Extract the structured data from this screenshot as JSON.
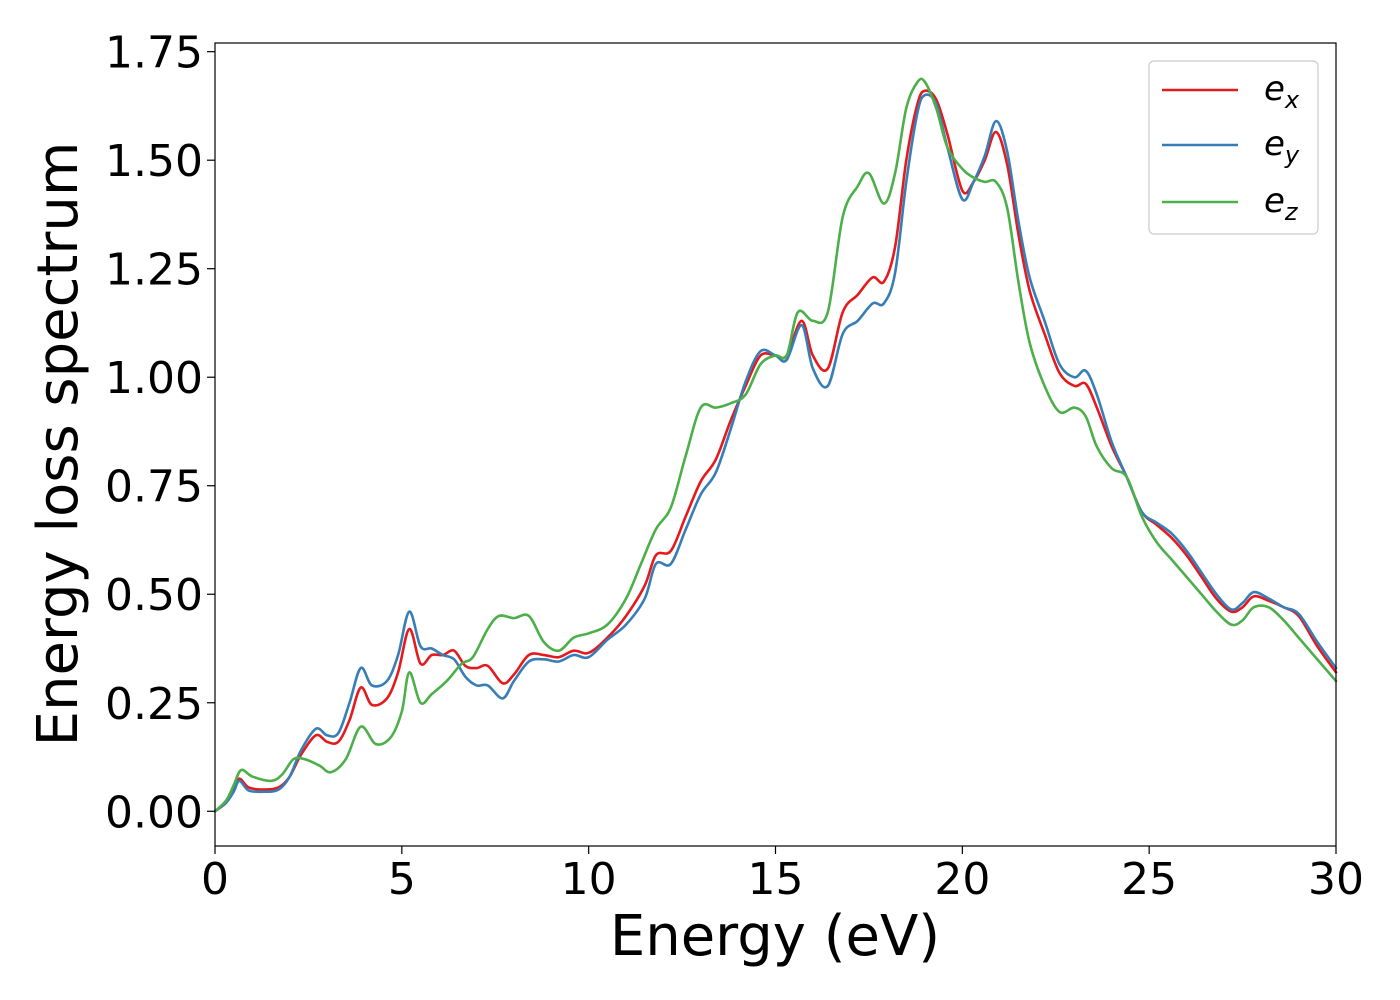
{
  "chart_data": {
    "type": "line",
    "xlabel": "Energy (eV)",
    "ylabel": "Energy loss spectrum",
    "xlim": [
      0,
      30
    ],
    "ylim": [
      -0.08,
      1.77
    ],
    "xticks": [
      0,
      5,
      10,
      15,
      20,
      25,
      30
    ],
    "xtick_labels": [
      "0",
      "5",
      "10",
      "15",
      "20",
      "25",
      "30"
    ],
    "yticks": [
      0,
      0.25,
      0.5,
      0.75,
      1.0,
      1.25,
      1.5,
      1.75
    ],
    "ytick_labels": [
      "0.00",
      "0.25",
      "0.50",
      "0.75",
      "1.00",
      "1.25",
      "1.50",
      "1.75"
    ],
    "grid": false,
    "legend_position": "top-right",
    "series": [
      {
        "name": "e_x",
        "label_main": "e",
        "label_sub": "x",
        "color": "#e41a1c",
        "points": [
          [
            0,
            0.0
          ],
          [
            0.3,
            0.02
          ],
          [
            0.5,
            0.05
          ],
          [
            0.65,
            0.075
          ],
          [
            0.9,
            0.055
          ],
          [
            1.3,
            0.05
          ],
          [
            1.7,
            0.055
          ],
          [
            2.0,
            0.08
          ],
          [
            2.3,
            0.13
          ],
          [
            2.7,
            0.175
          ],
          [
            3.0,
            0.16
          ],
          [
            3.3,
            0.16
          ],
          [
            3.6,
            0.21
          ],
          [
            3.9,
            0.285
          ],
          [
            4.2,
            0.245
          ],
          [
            4.6,
            0.26
          ],
          [
            4.9,
            0.32
          ],
          [
            5.2,
            0.42
          ],
          [
            5.5,
            0.34
          ],
          [
            5.8,
            0.36
          ],
          [
            6.1,
            0.36
          ],
          [
            6.4,
            0.37
          ],
          [
            6.7,
            0.335
          ],
          [
            7.0,
            0.33
          ],
          [
            7.3,
            0.335
          ],
          [
            7.7,
            0.295
          ],
          [
            8.0,
            0.315
          ],
          [
            8.4,
            0.36
          ],
          [
            8.8,
            0.36
          ],
          [
            9.2,
            0.355
          ],
          [
            9.6,
            0.37
          ],
          [
            10.0,
            0.365
          ],
          [
            10.5,
            0.4
          ],
          [
            11.0,
            0.45
          ],
          [
            11.5,
            0.52
          ],
          [
            11.8,
            0.59
          ],
          [
            12.2,
            0.6
          ],
          [
            12.6,
            0.68
          ],
          [
            13.0,
            0.76
          ],
          [
            13.4,
            0.81
          ],
          [
            13.8,
            0.9
          ],
          [
            14.2,
            0.98
          ],
          [
            14.6,
            1.05
          ],
          [
            15.0,
            1.05
          ],
          [
            15.3,
            1.05
          ],
          [
            15.7,
            1.13
          ],
          [
            16.0,
            1.05
          ],
          [
            16.4,
            1.02
          ],
          [
            16.8,
            1.15
          ],
          [
            17.2,
            1.19
          ],
          [
            17.6,
            1.23
          ],
          [
            17.9,
            1.22
          ],
          [
            18.2,
            1.3
          ],
          [
            18.5,
            1.5
          ],
          [
            18.8,
            1.63
          ],
          [
            19.0,
            1.66
          ],
          [
            19.3,
            1.64
          ],
          [
            19.6,
            1.56
          ],
          [
            20.0,
            1.43
          ],
          [
            20.3,
            1.45
          ],
          [
            20.6,
            1.5
          ],
          [
            20.9,
            1.565
          ],
          [
            21.2,
            1.49
          ],
          [
            21.5,
            1.33
          ],
          [
            21.8,
            1.2
          ],
          [
            22.2,
            1.1
          ],
          [
            22.6,
            1.01
          ],
          [
            23.0,
            0.98
          ],
          [
            23.3,
            0.985
          ],
          [
            23.6,
            0.93
          ],
          [
            24.0,
            0.84
          ],
          [
            24.4,
            0.77
          ],
          [
            24.8,
            0.69
          ],
          [
            25.2,
            0.66
          ],
          [
            25.6,
            0.63
          ],
          [
            26.0,
            0.59
          ],
          [
            26.4,
            0.54
          ],
          [
            26.8,
            0.49
          ],
          [
            27.2,
            0.46
          ],
          [
            27.5,
            0.47
          ],
          [
            27.8,
            0.495
          ],
          [
            28.2,
            0.485
          ],
          [
            28.6,
            0.47
          ],
          [
            29.0,
            0.45
          ],
          [
            29.5,
            0.38
          ],
          [
            30.0,
            0.32
          ]
        ]
      },
      {
        "name": "e_y",
        "label_main": "e",
        "label_sub": "y",
        "color": "#377eb8",
        "points": [
          [
            0,
            0.0
          ],
          [
            0.3,
            0.02
          ],
          [
            0.5,
            0.045
          ],
          [
            0.65,
            0.07
          ],
          [
            0.9,
            0.048
          ],
          [
            1.3,
            0.045
          ],
          [
            1.7,
            0.05
          ],
          [
            2.0,
            0.08
          ],
          [
            2.3,
            0.14
          ],
          [
            2.7,
            0.19
          ],
          [
            3.0,
            0.175
          ],
          [
            3.3,
            0.18
          ],
          [
            3.6,
            0.25
          ],
          [
            3.9,
            0.33
          ],
          [
            4.2,
            0.29
          ],
          [
            4.6,
            0.3
          ],
          [
            4.9,
            0.36
          ],
          [
            5.2,
            0.46
          ],
          [
            5.5,
            0.38
          ],
          [
            5.8,
            0.375
          ],
          [
            6.1,
            0.36
          ],
          [
            6.4,
            0.35
          ],
          [
            6.7,
            0.31
          ],
          [
            7.0,
            0.29
          ],
          [
            7.3,
            0.29
          ],
          [
            7.7,
            0.26
          ],
          [
            8.0,
            0.3
          ],
          [
            8.4,
            0.345
          ],
          [
            8.8,
            0.35
          ],
          [
            9.2,
            0.345
          ],
          [
            9.6,
            0.36
          ],
          [
            10.0,
            0.355
          ],
          [
            10.5,
            0.395
          ],
          [
            11.0,
            0.43
          ],
          [
            11.5,
            0.49
          ],
          [
            11.8,
            0.57
          ],
          [
            12.2,
            0.57
          ],
          [
            12.6,
            0.65
          ],
          [
            13.0,
            0.73
          ],
          [
            13.4,
            0.78
          ],
          [
            13.8,
            0.88
          ],
          [
            14.2,
            0.99
          ],
          [
            14.6,
            1.06
          ],
          [
            15.0,
            1.05
          ],
          [
            15.3,
            1.04
          ],
          [
            15.7,
            1.12
          ],
          [
            16.0,
            1.02
          ],
          [
            16.4,
            0.98
          ],
          [
            16.8,
            1.1
          ],
          [
            17.2,
            1.13
          ],
          [
            17.6,
            1.17
          ],
          [
            17.9,
            1.17
          ],
          [
            18.2,
            1.24
          ],
          [
            18.5,
            1.45
          ],
          [
            18.8,
            1.61
          ],
          [
            19.0,
            1.65
          ],
          [
            19.3,
            1.63
          ],
          [
            19.6,
            1.53
          ],
          [
            20.0,
            1.41
          ],
          [
            20.3,
            1.45
          ],
          [
            20.6,
            1.51
          ],
          [
            20.9,
            1.59
          ],
          [
            21.2,
            1.52
          ],
          [
            21.5,
            1.36
          ],
          [
            21.8,
            1.23
          ],
          [
            22.2,
            1.13
          ],
          [
            22.6,
            1.03
          ],
          [
            23.0,
            1.0
          ],
          [
            23.3,
            1.015
          ],
          [
            23.6,
            0.96
          ],
          [
            24.0,
            0.85
          ],
          [
            24.4,
            0.77
          ],
          [
            24.8,
            0.69
          ],
          [
            25.2,
            0.665
          ],
          [
            25.6,
            0.64
          ],
          [
            26.0,
            0.6
          ],
          [
            26.4,
            0.55
          ],
          [
            26.8,
            0.5
          ],
          [
            27.2,
            0.465
          ],
          [
            27.5,
            0.48
          ],
          [
            27.8,
            0.505
          ],
          [
            28.2,
            0.49
          ],
          [
            28.6,
            0.47
          ],
          [
            29.0,
            0.455
          ],
          [
            29.5,
            0.39
          ],
          [
            30.0,
            0.33
          ]
        ]
      },
      {
        "name": "e_z",
        "label_main": "e",
        "label_sub": "z",
        "color": "#4daf4a",
        "points": [
          [
            0,
            0.0
          ],
          [
            0.3,
            0.025
          ],
          [
            0.5,
            0.06
          ],
          [
            0.7,
            0.095
          ],
          [
            1.0,
            0.08
          ],
          [
            1.5,
            0.07
          ],
          [
            1.8,
            0.085
          ],
          [
            2.1,
            0.12
          ],
          [
            2.4,
            0.12
          ],
          [
            2.8,
            0.105
          ],
          [
            3.1,
            0.09
          ],
          [
            3.5,
            0.12
          ],
          [
            3.9,
            0.195
          ],
          [
            4.3,
            0.155
          ],
          [
            4.7,
            0.17
          ],
          [
            5.0,
            0.23
          ],
          [
            5.2,
            0.32
          ],
          [
            5.5,
            0.25
          ],
          [
            5.8,
            0.27
          ],
          [
            6.2,
            0.3
          ],
          [
            6.6,
            0.34
          ],
          [
            6.9,
            0.355
          ],
          [
            7.3,
            0.42
          ],
          [
            7.6,
            0.45
          ],
          [
            8.0,
            0.445
          ],
          [
            8.4,
            0.45
          ],
          [
            8.8,
            0.39
          ],
          [
            9.2,
            0.37
          ],
          [
            9.6,
            0.4
          ],
          [
            10.0,
            0.41
          ],
          [
            10.5,
            0.43
          ],
          [
            11.0,
            0.49
          ],
          [
            11.4,
            0.57
          ],
          [
            11.8,
            0.65
          ],
          [
            12.2,
            0.7
          ],
          [
            12.6,
            0.82
          ],
          [
            13.0,
            0.93
          ],
          [
            13.4,
            0.93
          ],
          [
            13.8,
            0.94
          ],
          [
            14.2,
            0.96
          ],
          [
            14.6,
            1.03
          ],
          [
            15.0,
            1.05
          ],
          [
            15.3,
            1.05
          ],
          [
            15.6,
            1.15
          ],
          [
            16.0,
            1.13
          ],
          [
            16.4,
            1.15
          ],
          [
            16.8,
            1.37
          ],
          [
            17.2,
            1.44
          ],
          [
            17.5,
            1.47
          ],
          [
            17.9,
            1.4
          ],
          [
            18.2,
            1.47
          ],
          [
            18.5,
            1.62
          ],
          [
            18.8,
            1.68
          ],
          [
            19.0,
            1.68
          ],
          [
            19.3,
            1.62
          ],
          [
            19.6,
            1.53
          ],
          [
            20.0,
            1.48
          ],
          [
            20.3,
            1.46
          ],
          [
            20.6,
            1.45
          ],
          [
            20.9,
            1.45
          ],
          [
            21.2,
            1.39
          ],
          [
            21.5,
            1.22
          ],
          [
            21.8,
            1.08
          ],
          [
            22.2,
            0.98
          ],
          [
            22.6,
            0.92
          ],
          [
            23.0,
            0.93
          ],
          [
            23.3,
            0.91
          ],
          [
            23.6,
            0.84
          ],
          [
            24.0,
            0.79
          ],
          [
            24.4,
            0.77
          ],
          [
            24.8,
            0.68
          ],
          [
            25.2,
            0.62
          ],
          [
            25.6,
            0.58
          ],
          [
            26.0,
            0.54
          ],
          [
            26.4,
            0.5
          ],
          [
            26.8,
            0.46
          ],
          [
            27.2,
            0.43
          ],
          [
            27.5,
            0.44
          ],
          [
            27.8,
            0.47
          ],
          [
            28.2,
            0.47
          ],
          [
            28.6,
            0.44
          ],
          [
            29.0,
            0.4
          ],
          [
            29.5,
            0.35
          ],
          [
            30.0,
            0.3
          ]
        ]
      }
    ]
  }
}
